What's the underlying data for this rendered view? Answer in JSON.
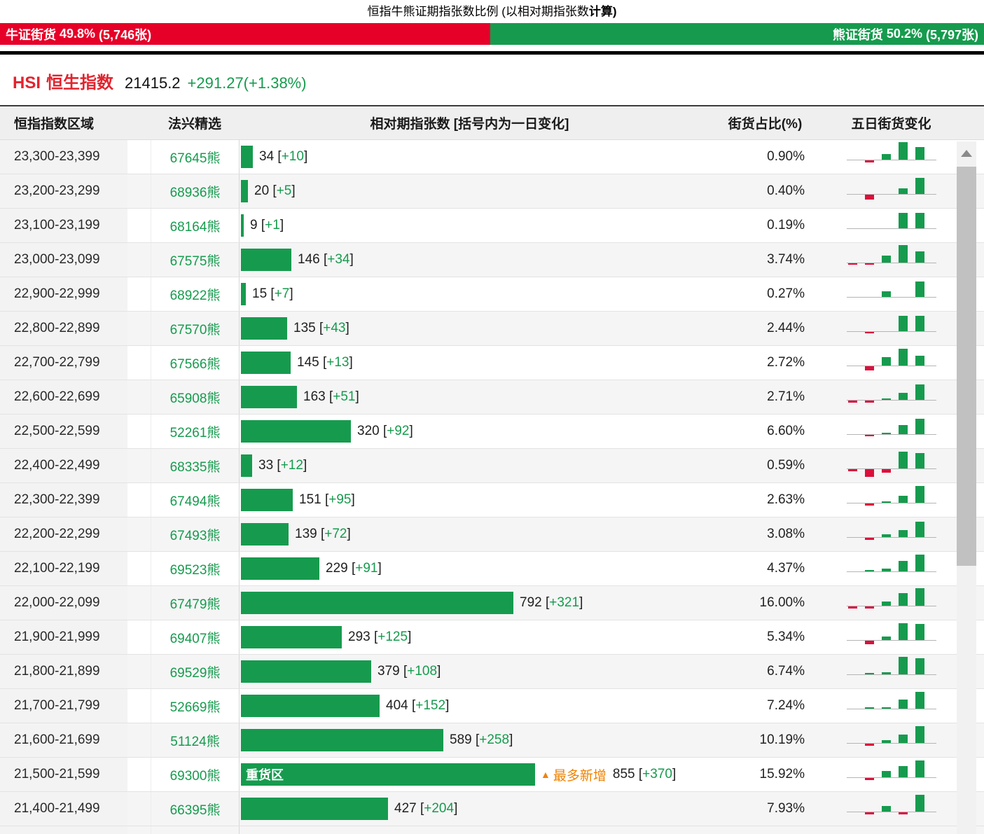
{
  "title": {
    "prefix": "恒指牛熊证期指张数比例 (以相对期指张数",
    "bold": "计算)"
  },
  "ratio_bar": {
    "bull": {
      "label": "牛证街货",
      "percent": "49.8%",
      "count": "(5,746张)",
      "width_pct": 49.8
    },
    "bear": {
      "label": "熊证街货",
      "percent": "50.2%",
      "count": "(5,797张)",
      "width_pct": 50.2
    }
  },
  "index": {
    "code": "HSI",
    "name": "恒生指数",
    "value": "21415.2",
    "change": "+291.27(+1.38%)"
  },
  "colors": {
    "bull_red": "#e60028",
    "bear_green": "#169b4e",
    "spark_down_red": "#dc0f3c",
    "highlight_orange": "#f08300"
  },
  "icons": {
    "scroll_up": "triangle-up",
    "max_increase_marker": "▲"
  },
  "table": {
    "headers": {
      "range": "恒指指数区域",
      "code": "法兴精选",
      "bar": "相对期指张数 [括号内为一日变化]",
      "percent": "街货占比(%)",
      "spark": "五日街货变化"
    },
    "bar_max_value": 855,
    "rows": [
      {
        "range": "23,300-23,399",
        "code": "67645熊",
        "value": 34,
        "change": "+10",
        "percent": "0.90%",
        "spark": [
          0,
          -0.12,
          0.32,
          1,
          0.72
        ]
      },
      {
        "range": "23,200-23,299",
        "code": "68936熊",
        "value": 20,
        "change": "+5",
        "percent": "0.40%",
        "spark": [
          0,
          -0.28,
          0,
          0.32,
          0.92
        ]
      },
      {
        "range": "23,100-23,199",
        "code": "68164熊",
        "value": 9,
        "change": "+1",
        "percent": "0.19%",
        "spark": [
          0,
          0,
          0,
          0.88,
          0.88
        ]
      },
      {
        "range": "23,000-23,099",
        "code": "67575熊",
        "value": 146,
        "change": "+34",
        "percent": "3.74%",
        "spark": [
          -0.08,
          -0.08,
          0.4,
          1,
          0.64
        ]
      },
      {
        "range": "22,900-22,999",
        "code": "68922熊",
        "value": 15,
        "change": "+7",
        "percent": "0.27%",
        "spark": [
          0,
          0,
          0.32,
          0,
          0.88
        ]
      },
      {
        "range": "22,800-22,899",
        "code": "67570熊",
        "value": 135,
        "change": "+43",
        "percent": "2.44%",
        "spark": [
          0,
          -0.08,
          0,
          0.88,
          0.88
        ]
      },
      {
        "range": "22,700-22,799",
        "code": "67566熊",
        "value": 145,
        "change": "+13",
        "percent": "2.72%",
        "spark": [
          0,
          -0.24,
          0.48,
          0.96,
          0.56
        ]
      },
      {
        "range": "22,600-22,699",
        "code": "65908熊",
        "value": 163,
        "change": "+51",
        "percent": "2.71%",
        "spark": [
          -0.12,
          -0.12,
          0.08,
          0.4,
          0.88
        ]
      },
      {
        "range": "22,500-22,599",
        "code": "52261熊",
        "value": 320,
        "change": "+92",
        "percent": "6.60%",
        "spark": [
          0,
          -0.08,
          0.08,
          0.52,
          0.88
        ]
      },
      {
        "range": "22,400-22,499",
        "code": "68335熊",
        "value": 33,
        "change": "+12",
        "percent": "0.59%",
        "spark": [
          -0.12,
          -0.44,
          -0.2,
          0.96,
          0.88
        ]
      },
      {
        "range": "22,300-22,399",
        "code": "67494熊",
        "value": 151,
        "change": "+95",
        "percent": "2.63%",
        "spark": [
          0,
          -0.12,
          0.08,
          0.4,
          0.96
        ]
      },
      {
        "range": "22,200-22,299",
        "code": "67493熊",
        "value": 139,
        "change": "+72",
        "percent": "3.08%",
        "spark": [
          0,
          -0.12,
          0.16,
          0.4,
          0.88
        ]
      },
      {
        "range": "22,100-22,199",
        "code": "69523熊",
        "value": 229,
        "change": "+91",
        "percent": "4.37%",
        "spark": [
          0,
          0.08,
          0.16,
          0.6,
          0.96
        ]
      },
      {
        "range": "22,000-22,099",
        "code": "67479熊",
        "value": 792,
        "change": "+321",
        "percent": "16.00%",
        "spark": [
          -0.12,
          -0.12,
          0.24,
          0.72,
          1
        ]
      },
      {
        "range": "21,900-21,999",
        "code": "69407熊",
        "value": 293,
        "change": "+125",
        "percent": "5.34%",
        "spark": [
          0,
          -0.2,
          0.2,
          0.96,
          0.92
        ]
      },
      {
        "range": "21,800-21,899",
        "code": "69529熊",
        "value": 379,
        "change": "+108",
        "percent": "6.74%",
        "spark": [
          0,
          0.08,
          0.12,
          1,
          0.92
        ]
      },
      {
        "range": "21,700-21,799",
        "code": "52669熊",
        "value": 404,
        "change": "+152",
        "percent": "7.24%",
        "spark": [
          0,
          0.08,
          0.08,
          0.52,
          0.96
        ]
      },
      {
        "range": "21,600-21,699",
        "code": "51124熊",
        "value": 589,
        "change": "+258",
        "percent": "10.19%",
        "spark": [
          0,
          -0.12,
          0.16,
          0.48,
          0.96
        ]
      },
      {
        "range": "21,500-21,599",
        "code": "69300熊",
        "value": 855,
        "change": "+370",
        "percent": "15.92%",
        "bar_label": "重货区",
        "annotation": "最多新增",
        "spark": [
          0,
          -0.12,
          0.36,
          0.64,
          0.96
        ]
      },
      {
        "range": "21,400-21,499",
        "code": "66395熊",
        "value": 427,
        "change": "+204",
        "percent": "7.93%",
        "spark": [
          0,
          -0.12,
          0.32,
          -0.12,
          0.96
        ]
      }
    ]
  }
}
